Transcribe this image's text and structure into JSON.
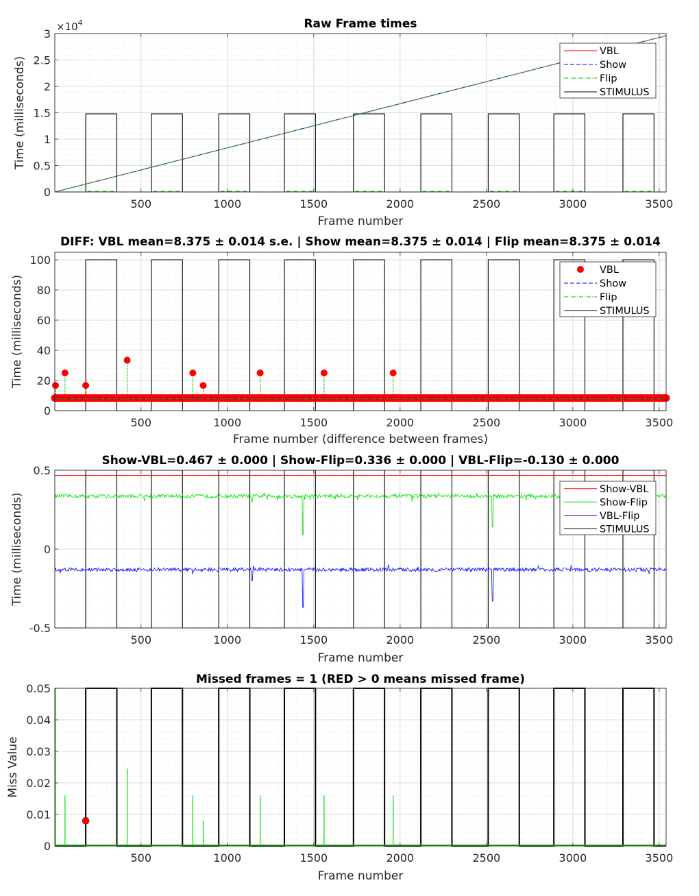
{
  "chart_data": [
    {
      "type": "line",
      "title": "Raw Frame times",
      "xlabel": "Frame number",
      "ylabel": "Time (milliseconds)",
      "xlim": [
        1,
        3540
      ],
      "ylim": [
        0,
        30000
      ],
      "exponent_label": "×10",
      "exponent_power": "4",
      "xticks": [
        500,
        1000,
        1500,
        2000,
        2500,
        3000,
        3500
      ],
      "xtick_labels": [
        "500",
        "1000",
        "1500",
        "2000",
        "2500",
        "3000",
        "3500"
      ],
      "yticks": [
        0,
        5000,
        10000,
        15000,
        20000,
        25000,
        30000
      ],
      "ytick_labels": [
        "0",
        "0.5",
        "1",
        "1.5",
        "2",
        "2.5",
        "3"
      ],
      "grid": true,
      "legend_position": "top-right",
      "legend": [
        "VBL",
        "Show",
        "Flip",
        "STIMULUS"
      ],
      "series": [
        {
          "name": "VBL",
          "color": "#ff0000",
          "style": "solid",
          "x": [
            1,
            3540
          ],
          "y": [
            0,
            29600
          ]
        },
        {
          "name": "Show",
          "color": "#0000ff",
          "style": "dashed",
          "x": [
            1,
            3540
          ],
          "y": [
            0,
            29600
          ]
        },
        {
          "name": "Flip",
          "color": "#00c000",
          "style": "dashdot",
          "x": [
            1,
            3540
          ],
          "y": [
            0,
            29600
          ]
        }
      ],
      "stimulus": {
        "low": 0,
        "high": 14800,
        "on_intervals": [
          [
            180,
            360
          ],
          [
            560,
            740
          ],
          [
            950,
            1130
          ],
          [
            1330,
            1510
          ],
          [
            1730,
            1910
          ],
          [
            2120,
            2300
          ],
          [
            2510,
            2690
          ],
          [
            2890,
            3070
          ],
          [
            3290,
            3470
          ]
        ]
      }
    },
    {
      "type": "line",
      "title": "DIFF: VBL mean=8.375 ± 0.014 s.e. | Show mean=8.375 ± 0.014 | Flip mean=8.375 ± 0.014",
      "xlabel": "Frame number (difference between frames)",
      "ylabel": "Time (milliseconds)",
      "xlim": [
        1,
        3540
      ],
      "ylim": [
        0,
        105
      ],
      "xticks": [
        500,
        1000,
        1500,
        2000,
        2500,
        3000,
        3500
      ],
      "xtick_labels": [
        "500",
        "1000",
        "1500",
        "2000",
        "2500",
        "3000",
        "3500"
      ],
      "yticks": [
        0,
        20,
        40,
        60,
        80,
        100
      ],
      "ytick_labels": [
        "0",
        "20",
        "40",
        "60",
        "80",
        "100"
      ],
      "grid": true,
      "legend_position": "top-right",
      "legend": [
        "VBL",
        "Show",
        "Flip",
        "STIMULUS"
      ],
      "baseline": 8.375,
      "vbl_spikes": {
        "x": [
          5,
          60,
          180,
          420,
          800,
          860,
          1190,
          1560,
          1960
        ],
        "y": [
          16.7,
          25,
          16.7,
          33.4,
          25,
          16.7,
          25,
          25,
          25
        ]
      },
      "series": [
        {
          "name": "VBL",
          "color": "#ff0000",
          "marker": "circle"
        },
        {
          "name": "Show",
          "color": "#0000ff",
          "style": "dashed"
        },
        {
          "name": "Flip",
          "color": "#00c000",
          "style": "dashdot"
        }
      ],
      "stimulus": {
        "low": 0,
        "high": 100,
        "on_intervals": [
          [
            180,
            360
          ],
          [
            560,
            740
          ],
          [
            950,
            1130
          ],
          [
            1330,
            1510
          ],
          [
            1730,
            1910
          ],
          [
            2120,
            2300
          ],
          [
            2510,
            2690
          ],
          [
            2890,
            3070
          ],
          [
            3290,
            3470
          ]
        ]
      }
    },
    {
      "type": "line",
      "title": "Show-VBL=0.467 ± 0.000 | Show-Flip=0.336 ± 0.000 | VBL-Flip=-0.130 ± 0.000",
      "xlabel": "Frame number",
      "ylabel": "Time (milliseconds)",
      "xlim": [
        1,
        3540
      ],
      "ylim": [
        -0.5,
        0.5
      ],
      "xticks": [
        500,
        1000,
        1500,
        2000,
        2500,
        3000,
        3500
      ],
      "xtick_labels": [
        "500",
        "1000",
        "1500",
        "2000",
        "2500",
        "3000",
        "3500"
      ],
      "yticks": [
        -0.5,
        0,
        0.5
      ],
      "ytick_labels": [
        "-0.5",
        "0",
        "0.5"
      ],
      "grid": true,
      "legend_position": "top-right",
      "legend": [
        "Show-VBL",
        "Show-Flip",
        "VBL-Flip",
        "STIMULUS"
      ],
      "series": [
        {
          "name": "Show-VBL",
          "color": "#ff0000",
          "mean": 0.467,
          "noise": 0
        },
        {
          "name": "Show-Flip",
          "color": "#00e000",
          "mean": 0.336,
          "noise": 0.012,
          "dips": [
            [
              1145,
              0.3
            ],
            [
              1440,
              0.09
            ],
            [
              2535,
              0.14
            ]
          ]
        },
        {
          "name": "VBL-Flip",
          "color": "#0000ff",
          "mean": -0.13,
          "noise": 0.012,
          "dips": [
            [
              1145,
              -0.2
            ],
            [
              1440,
              -0.37
            ],
            [
              2535,
              -0.33
            ]
          ]
        }
      ],
      "stimulus": {
        "low": -0.5,
        "high": 0.5,
        "on_intervals": [
          [
            180,
            360
          ],
          [
            560,
            740
          ],
          [
            950,
            1130
          ],
          [
            1330,
            1510
          ],
          [
            1730,
            1910
          ],
          [
            2120,
            2300
          ],
          [
            2510,
            2690
          ],
          [
            2890,
            3070
          ],
          [
            3290,
            3470
          ]
        ]
      }
    },
    {
      "type": "line",
      "title": "Missed frames = 1 (RED > 0 means missed frame)",
      "xlabel": "Frame number",
      "ylabel": "Miss Value",
      "xlim": [
        1,
        3540
      ],
      "ylim": [
        0,
        0.05
      ],
      "xticks": [
        500,
        1000,
        1500,
        2000,
        2500,
        3000,
        3500
      ],
      "xtick_labels": [
        "500",
        "1000",
        "1500",
        "2000",
        "2500",
        "3000",
        "3500"
      ],
      "yticks": [
        0,
        0.01,
        0.02,
        0.03,
        0.04,
        0.05
      ],
      "ytick_labels": [
        "0",
        "0.01",
        "0.02",
        "0.03",
        "0.04",
        "0.05"
      ],
      "grid": true,
      "green_spikes": {
        "x": [
          5,
          60,
          420,
          800,
          860,
          1190,
          1560,
          1960
        ],
        "y": [
          0.05,
          0.016,
          0.0245,
          0.016,
          0.008,
          0.016,
          0.016,
          0.016
        ]
      },
      "missed_points": {
        "x": [
          180
        ],
        "y": [
          0.008
        ]
      },
      "stimulus": {
        "low": 0,
        "high": 0.05,
        "on_intervals": [
          [
            180,
            360
          ],
          [
            560,
            740
          ],
          [
            950,
            1130
          ],
          [
            1330,
            1510
          ],
          [
            1730,
            1910
          ],
          [
            2120,
            2300
          ],
          [
            2510,
            2690
          ],
          [
            2890,
            3070
          ],
          [
            3290,
            3470
          ]
        ]
      }
    }
  ]
}
